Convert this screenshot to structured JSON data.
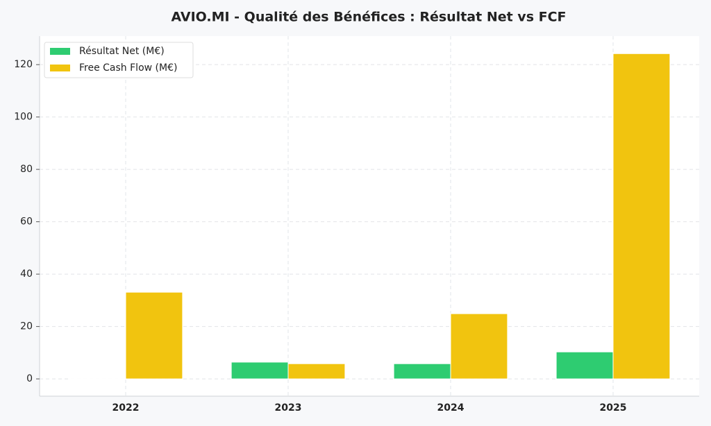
{
  "chart_data": {
    "type": "bar",
    "title": "AVIO.MI - Qualité des Bénéfices : Résultat Net vs FCF",
    "categories": [
      "2022",
      "2023",
      "2024",
      "2025"
    ],
    "series": [
      {
        "name": "Résultat Net (M€)",
        "color": "#2ecc71",
        "values": [
          -0.2,
          6.4,
          5.8,
          10.3
        ]
      },
      {
        "name": "Free Cash Flow (M€)",
        "color": "#f1c40f",
        "values": [
          33.1,
          5.8,
          24.9,
          124.2
        ]
      }
    ],
    "ylim": [
      -6.6,
      130.9
    ],
    "yticks": [
      0,
      20,
      40,
      60,
      80,
      100,
      120
    ],
    "grid": true,
    "legend": "upper-left"
  }
}
